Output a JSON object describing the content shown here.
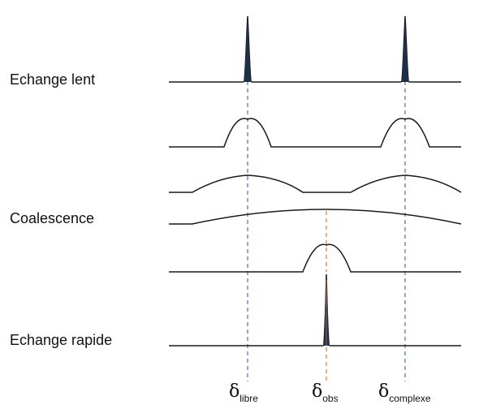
{
  "rows": [
    {
      "name": "echange-lent",
      "label": "Echange lent"
    },
    {
      "name": "intermediate-1",
      "label": ""
    },
    {
      "name": "intermediate-2",
      "label": ""
    },
    {
      "name": "coalescence",
      "label": "Coalescence"
    },
    {
      "name": "intermediate-3",
      "label": ""
    },
    {
      "name": "echange-rapide",
      "label": "Echange rapide"
    }
  ],
  "markers": {
    "libre": {
      "symbol": "δ",
      "sub": "libre",
      "color": "#4a72b0"
    },
    "obs": {
      "symbol": "δ",
      "sub": "obs",
      "color": "#e0783c"
    },
    "complexe": {
      "symbol": "δ",
      "sub": "complexe",
      "color": "#4a72b0"
    }
  },
  "colors": {
    "trace": "#1a1a1a",
    "peak_fill": "#1f2f4a"
  }
}
